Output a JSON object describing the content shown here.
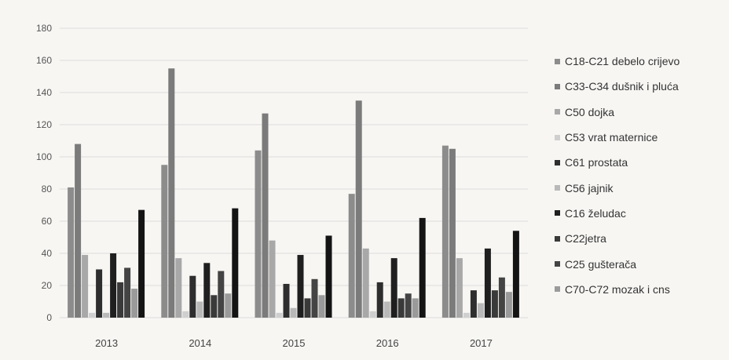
{
  "chart_data": {
    "type": "bar",
    "title": "",
    "xlabel": "",
    "ylabel": "",
    "ylim": [
      0,
      180
    ],
    "yticks": [
      "180",
      "160",
      "140",
      "120",
      "100",
      "80",
      "60",
      "40",
      "20",
      "0"
    ],
    "ytick_values": [
      180,
      160,
      140,
      120,
      100,
      80,
      60,
      40,
      20,
      0
    ],
    "categories": [
      "2013",
      "2014",
      "2015",
      "2016",
      "2017"
    ],
    "grid": true,
    "legend_position": "right",
    "series": [
      {
        "name": "C18-C21 debelo crijevo",
        "color": "#8c8c8c",
        "values": [
          81,
          95,
          104,
          77,
          107
        ]
      },
      {
        "name": "C33-C34 dušnik i pluća",
        "color": "#7b7b7b",
        "values": [
          108,
          155,
          127,
          135,
          105
        ]
      },
      {
        "name": "C50 dojka",
        "color": "#a8a8a8",
        "values": [
          39,
          37,
          48,
          43,
          37
        ]
      },
      {
        "name": "C53 vrat maternice",
        "color": "#cfcfcf",
        "values": [
          3,
          4,
          3,
          4,
          3
        ]
      },
      {
        "name": "C61 prostata",
        "color": "#2e2e2e",
        "values": [
          30,
          26,
          21,
          22,
          17
        ]
      },
      {
        "name": "C56 jajnik",
        "color": "#b9b9b9",
        "values": [
          3,
          10,
          6,
          10,
          9
        ]
      },
      {
        "name": "C16 želudac",
        "color": "#1f1f1f",
        "values": [
          40,
          34,
          39,
          37,
          43
        ]
      },
      {
        "name": "C22jetra",
        "color": "#3a3a3a",
        "values": [
          22,
          14,
          12,
          12,
          17
        ]
      },
      {
        "name": "C25 gušterača",
        "color": "#444444",
        "values": [
          31,
          29,
          24,
          15,
          25
        ]
      },
      {
        "name": "C70-C72 mozak i cns",
        "color": "#9a9a9a",
        "values": [
          18,
          15,
          14,
          12,
          16
        ]
      },
      {
        "name": "",
        "color": "#141414",
        "values": [
          67,
          68,
          51,
          62,
          54
        ]
      }
    ]
  }
}
